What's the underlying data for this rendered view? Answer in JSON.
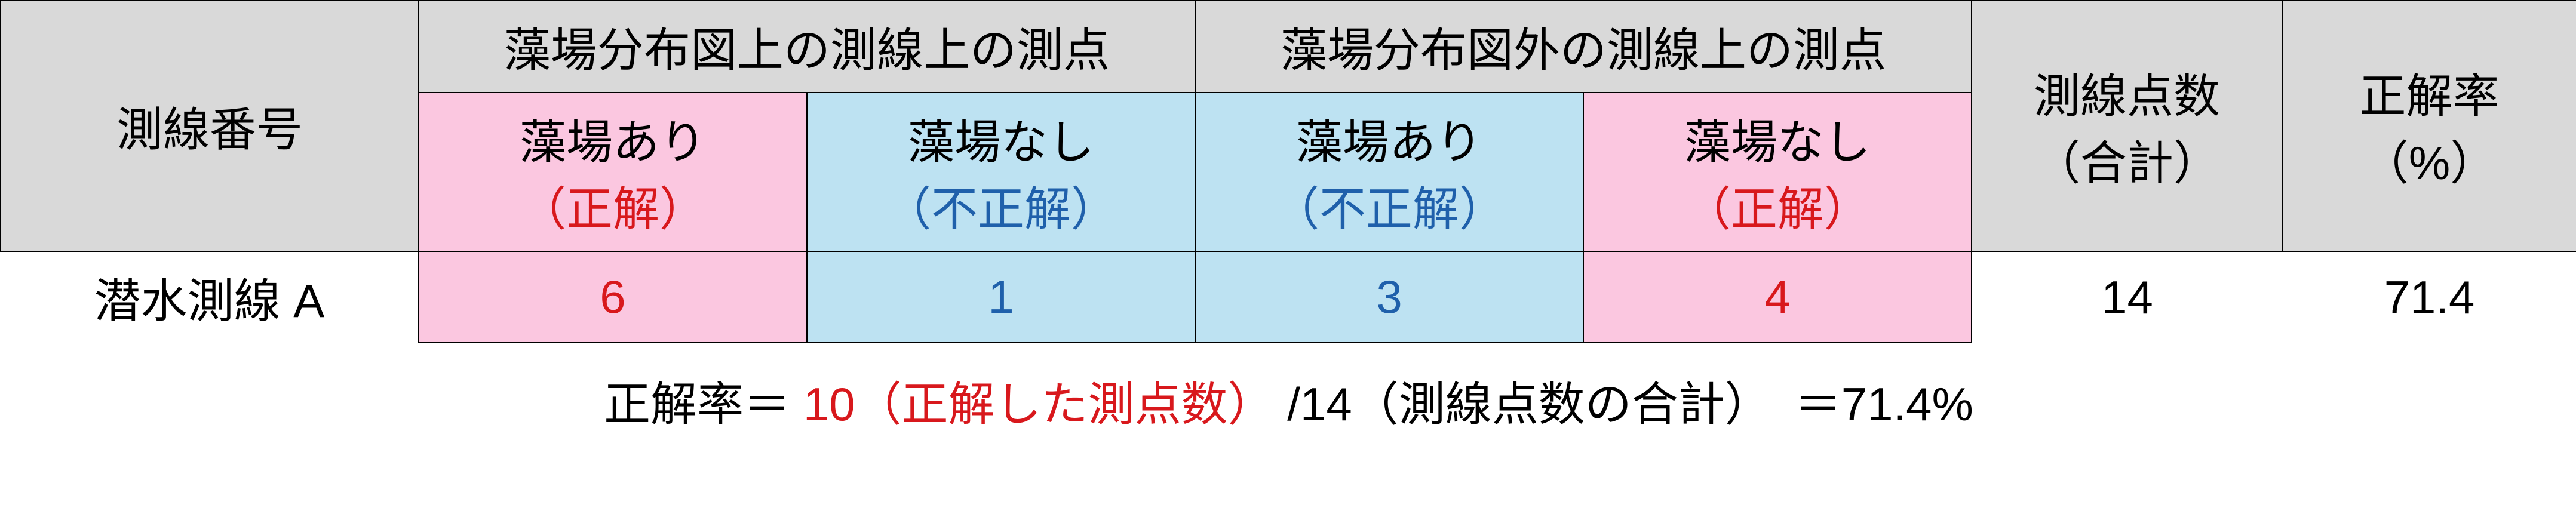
{
  "table": {
    "header": {
      "line_no": "測線番号",
      "inside_group": "藻場分布図上の測線上の測点",
      "outside_group": "藻場分布図外の測線上の測点",
      "point_count_l1": "測線点数",
      "point_count_l2": "（合計）",
      "accuracy_l1": "正解率",
      "accuracy_l2": "（%）",
      "inside_yes_l1": "藻場あり",
      "inside_yes_l2": "（正解）",
      "inside_no_l1": "藻場なし",
      "inside_no_l2": "（不正解）",
      "outside_yes_l1": "藻場あり",
      "outside_yes_l2": "（不正解）",
      "outside_no_l1": "藻場なし",
      "outside_no_l2": "（正解）"
    },
    "row": {
      "label": "潜水測線 A",
      "inside_yes": "6",
      "inside_no": "1",
      "outside_yes": "3",
      "outside_no": "4",
      "total": "14",
      "accuracy": "71.4"
    },
    "formula": {
      "prefix": "正解率＝",
      "correct_part": "10（正解した測点数）",
      "rest": "/14（測線点数の合計）　＝71.4%"
    },
    "colors": {
      "header_gray": "#d9d9d9",
      "pink": "#fbc7e0",
      "blue": "#bde2f2",
      "red": "#d8181c",
      "blue_text": "#1f60ab",
      "border": "#000000",
      "background": "#ffffff"
    },
    "font_size_pt": 58
  }
}
